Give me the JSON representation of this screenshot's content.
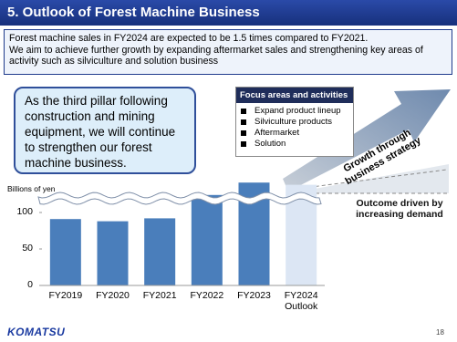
{
  "header": {
    "title": "5. Outlook of Forest Machine Business"
  },
  "summary": [
    "Forest machine sales in FY2024 are expected to be 1.5 times compared to FY2021.",
    "We aim to achieve further growth by expanding aftermarket sales and strengthening key areas of activity such as silviculture and solution business"
  ],
  "callout": "As the third pillar following construction and mining equipment, we will continue to strengthen our forest machine business.",
  "focus": {
    "title": "Focus areas and activities",
    "items": [
      "Expand product lineup",
      "Silviculture products",
      "Aftermarket",
      "Solution"
    ]
  },
  "growth_label": [
    "Growth through",
    "business strategy"
  ],
  "outcome_label": "Outcome driven by increasing demand",
  "footer": {
    "logo": "KOMATSU",
    "page": "18"
  },
  "chart_data": {
    "type": "bar",
    "y_label": "Billions of yen",
    "categories": [
      "FY2019",
      "FY2020",
      "FY2021",
      "FY2022",
      "FY2023",
      "FY2024 Outlook"
    ],
    "values": [
      91,
      88,
      92,
      124,
      141,
      138
    ],
    "colors": [
      "#4a7ebb",
      "#4a7ebb",
      "#4a7ebb",
      "#4a7ebb",
      "#4a7ebb",
      "#dce6f4"
    ],
    "ylim": [
      0,
      145
    ],
    "yticks": [
      0,
      50,
      100
    ]
  }
}
